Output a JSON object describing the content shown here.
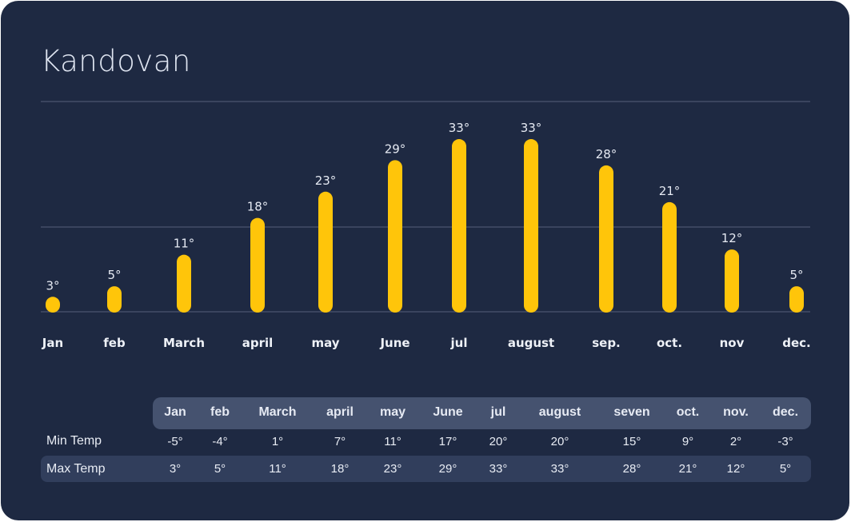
{
  "title": "Kandovan",
  "chart_data": {
    "type": "bar",
    "categories": [
      "Jan",
      "feb",
      "March",
      "april",
      "may",
      "June",
      "jul",
      "august",
      "sep.",
      "oct.",
      "nov",
      "dec."
    ],
    "values": [
      3,
      5,
      11,
      18,
      23,
      29,
      33,
      33,
      28,
      21,
      12,
      5
    ],
    "value_labels": [
      "3°",
      "5°",
      "11°",
      "18°",
      "23°",
      "29°",
      "33°",
      "33°",
      "28°",
      "21°",
      "12°",
      "5°"
    ],
    "ylim": [
      0,
      40
    ],
    "grid": true,
    "colors": {
      "bar": "#ffc50a",
      "grid": "#566079",
      "background": "#1e2942"
    }
  },
  "table": {
    "headers": [
      "Jan",
      "feb",
      "March",
      "april",
      "may",
      "June",
      "jul",
      "august",
      "seven",
      "oct.",
      "nov.",
      "dec."
    ],
    "rows": [
      {
        "label": "Min Temp",
        "values": [
          "-5°",
          "-4°",
          "1°",
          "7°",
          "11°",
          "17°",
          "20°",
          "20°",
          "15°",
          "9°",
          "2°",
          "-3°"
        ]
      },
      {
        "label": "Max Temp",
        "values": [
          "3°",
          "5°",
          "11°",
          "18°",
          "23°",
          "29°",
          "33°",
          "33°",
          "28°",
          "21°",
          "12°",
          "5°"
        ]
      }
    ]
  }
}
